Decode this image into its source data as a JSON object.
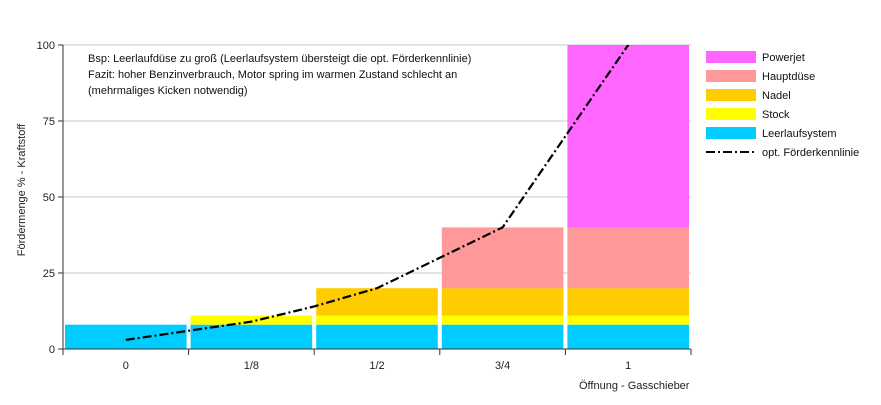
{
  "chart_data": {
    "type": "bar",
    "stacked": true,
    "categories": [
      "0",
      "1/8",
      "1/2",
      "3/4",
      "1"
    ],
    "series": [
      {
        "name": "Leerlaufsystem",
        "color": "#00ccff",
        "values": [
          8,
          8,
          8,
          8,
          8
        ]
      },
      {
        "name": "Stock",
        "color": "#ffff00",
        "values": [
          0,
          3,
          3,
          3,
          3
        ]
      },
      {
        "name": "Nadel",
        "color": "#ffcc00",
        "values": [
          0,
          0,
          9,
          9,
          9
        ]
      },
      {
        "name": "Hauptdüse",
        "color": "#ff9999",
        "values": [
          0,
          0,
          0,
          20,
          20
        ]
      },
      {
        "name": "Powerjet",
        "color": "#ff66ff",
        "values": [
          0,
          0,
          0,
          0,
          60
        ]
      }
    ],
    "line": {
      "name": "opt. Förderkennlinie",
      "color": "#000000",
      "points": [
        [
          0,
          3
        ],
        [
          0.5,
          6
        ],
        [
          1,
          9
        ],
        [
          1.5,
          14
        ],
        [
          2,
          20
        ],
        [
          2.5,
          30
        ],
        [
          3,
          40
        ],
        [
          3.5,
          70
        ],
        [
          4,
          100
        ]
      ]
    },
    "xlabel": "Öffnung - Gasschieber",
    "ylabel": "Fördermenge % - Kraftstoff",
    "ylim": [
      0,
      100
    ],
    "yticks": [
      0,
      25,
      50,
      75,
      100
    ],
    "grid": true,
    "legend_position": "right",
    "annotation": [
      "Bsp: Leerlaufdüse zu groß (Leerlaufsystem übersteigt die opt. Förderkennlinie)",
      "Fazit: hoher Benzinverbrauch, Motor spring im warmen Zustand schlecht an",
      "(mehrmaliges Kicken notwendig)"
    ]
  }
}
